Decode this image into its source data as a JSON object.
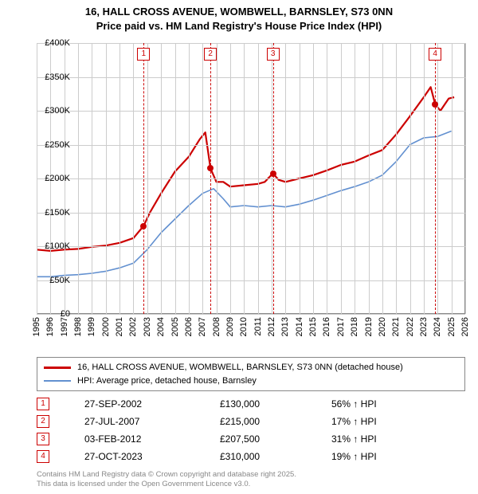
{
  "title_line1": "16, HALL CROSS AVENUE, WOMBWELL, BARNSLEY, S73 0NN",
  "title_line2": "Price paid vs. HM Land Registry's House Price Index (HPI)",
  "chart": {
    "type": "line",
    "background_color": "#ffffff",
    "grid_color": "#cccccc",
    "xlim": [
      1995,
      2026
    ],
    "ylim": [
      0,
      400000
    ],
    "ytick_step": 50000,
    "yticks": [
      "£0",
      "£50K",
      "£100K",
      "£150K",
      "£200K",
      "£250K",
      "£300K",
      "£350K",
      "£400K"
    ],
    "xticks": [
      1995,
      1996,
      1997,
      1998,
      1999,
      2000,
      2001,
      2002,
      2003,
      2004,
      2005,
      2006,
      2007,
      2008,
      2009,
      2010,
      2011,
      2012,
      2013,
      2014,
      2015,
      2016,
      2017,
      2018,
      2019,
      2020,
      2021,
      2022,
      2023,
      2024,
      2025,
      2026
    ],
    "series": [
      {
        "name": "property",
        "label": "16, HALL CROSS AVENUE, WOMBWELL, BARNSLEY, S73 0NN (detached house)",
        "color": "#cc0000",
        "line_width": 2.2,
        "points": [
          [
            1995,
            95000
          ],
          [
            1996,
            93000
          ],
          [
            1997,
            95000
          ],
          [
            1998,
            96000
          ],
          [
            1999,
            99000
          ],
          [
            2000,
            101000
          ],
          [
            2001,
            105000
          ],
          [
            2002,
            112000
          ],
          [
            2002.74,
            130000
          ],
          [
            2003.2,
            150000
          ],
          [
            2004,
            178000
          ],
          [
            2005,
            210000
          ],
          [
            2006,
            232000
          ],
          [
            2006.8,
            258000
          ],
          [
            2007.2,
            268000
          ],
          [
            2007.57,
            215000
          ],
          [
            2008,
            195000
          ],
          [
            2008.5,
            195000
          ],
          [
            2009,
            188000
          ],
          [
            2010,
            190000
          ],
          [
            2011,
            192000
          ],
          [
            2011.5,
            195000
          ],
          [
            2012.09,
            207500
          ],
          [
            2012.5,
            198000
          ],
          [
            2013,
            195000
          ],
          [
            2014,
            200000
          ],
          [
            2015,
            205000
          ],
          [
            2016,
            212000
          ],
          [
            2017,
            220000
          ],
          [
            2018,
            225000
          ],
          [
            2019,
            234000
          ],
          [
            2020,
            242000
          ],
          [
            2021,
            265000
          ],
          [
            2022,
            292000
          ],
          [
            2023,
            320000
          ],
          [
            2023.5,
            335000
          ],
          [
            2023.82,
            310000
          ],
          [
            2024.2,
            300000
          ],
          [
            2024.8,
            318000
          ],
          [
            2025.2,
            320000
          ]
        ]
      },
      {
        "name": "hpi",
        "label": "HPI: Average price, detached house, Barnsley",
        "color": "#6290d0",
        "line_width": 1.6,
        "points": [
          [
            1995,
            55000
          ],
          [
            1996,
            55000
          ],
          [
            1997,
            57000
          ],
          [
            1998,
            58000
          ],
          [
            1999,
            60000
          ],
          [
            2000,
            63000
          ],
          [
            2001,
            68000
          ],
          [
            2002,
            75000
          ],
          [
            2003,
            95000
          ],
          [
            2004,
            120000
          ],
          [
            2005,
            140000
          ],
          [
            2006,
            160000
          ],
          [
            2007,
            178000
          ],
          [
            2007.8,
            185000
          ],
          [
            2008.5,
            170000
          ],
          [
            2009,
            158000
          ],
          [
            2010,
            160000
          ],
          [
            2011,
            158000
          ],
          [
            2012,
            160000
          ],
          [
            2013,
            158000
          ],
          [
            2014,
            162000
          ],
          [
            2015,
            168000
          ],
          [
            2016,
            175000
          ],
          [
            2017,
            182000
          ],
          [
            2018,
            188000
          ],
          [
            2019,
            195000
          ],
          [
            2020,
            205000
          ],
          [
            2021,
            225000
          ],
          [
            2022,
            250000
          ],
          [
            2023,
            260000
          ],
          [
            2024,
            262000
          ],
          [
            2025,
            270000
          ]
        ]
      }
    ],
    "event_markers": [
      {
        "n": "1",
        "x": 2002.74,
        "y": 130000,
        "color": "#cc0000"
      },
      {
        "n": "2",
        "x": 2007.57,
        "y": 215000,
        "color": "#cc0000"
      },
      {
        "n": "3",
        "x": 2012.09,
        "y": 207500,
        "color": "#cc0000"
      },
      {
        "n": "4",
        "x": 2023.82,
        "y": 310000,
        "color": "#cc0000"
      }
    ],
    "label_fontsize": 11
  },
  "legend": [
    {
      "color": "#cc0000",
      "label": "16, HALL CROSS AVENUE, WOMBWELL, BARNSLEY, S73 0NN (detached house)"
    },
    {
      "color": "#6290d0",
      "label": "HPI: Average price, detached house, Barnsley"
    }
  ],
  "table": {
    "marker_color": "#cc0000",
    "rows": [
      {
        "n": "1",
        "date": "27-SEP-2002",
        "price": "£130,000",
        "delta": "56% ↑ HPI"
      },
      {
        "n": "2",
        "date": "27-JUL-2007",
        "price": "£215,000",
        "delta": "17% ↑ HPI"
      },
      {
        "n": "3",
        "date": "03-FEB-2012",
        "price": "£207,500",
        "delta": "31% ↑ HPI"
      },
      {
        "n": "4",
        "date": "27-OCT-2023",
        "price": "£310,000",
        "delta": "19% ↑ HPI"
      }
    ]
  },
  "footer_line1": "Contains HM Land Registry data © Crown copyright and database right 2025.",
  "footer_line2": "This data is licensed under the Open Government Licence v3.0."
}
